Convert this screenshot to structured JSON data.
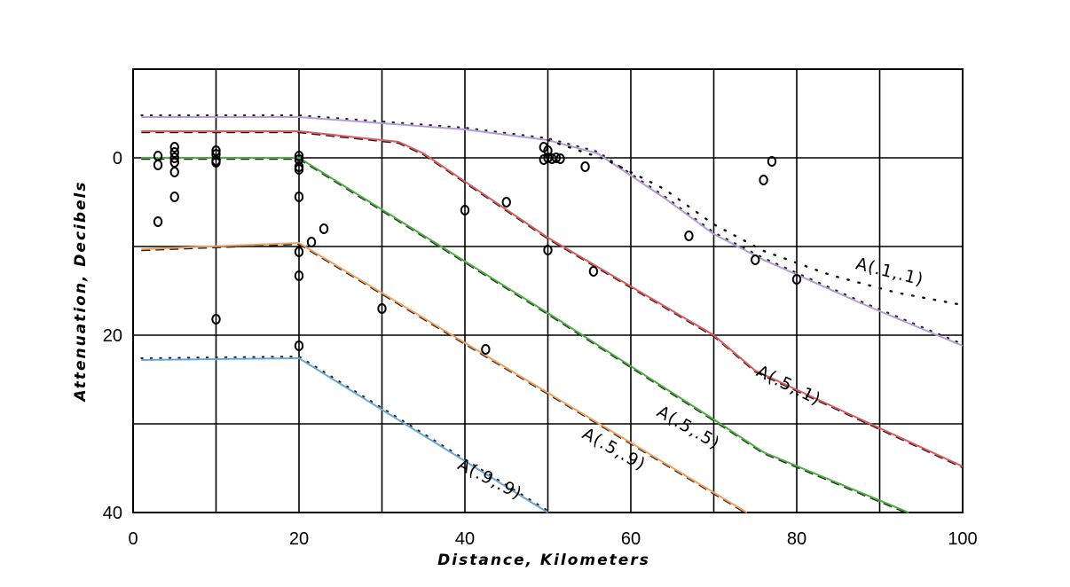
{
  "chart_data": {
    "type": "line",
    "title": "",
    "xlabel": "Distance, Kilometers",
    "ylabel": "Attenuation, Decibels",
    "xlim": [
      0,
      100
    ],
    "ylim": [
      -10,
      40
    ],
    "y_inverted": true,
    "grid": true,
    "x_ticks": [
      {
        "value": 0,
        "label": "0"
      },
      {
        "value": 20,
        "label": "20"
      },
      {
        "value": 40,
        "label": "40"
      },
      {
        "value": 60,
        "label": "60"
      },
      {
        "value": 80,
        "label": "80"
      },
      {
        "value": 100,
        "label": "100"
      }
    ],
    "y_ticks": [
      {
        "value": 0,
        "label": "0"
      },
      {
        "value": 20,
        "label": "20"
      },
      {
        "value": 40,
        "label": "40"
      }
    ],
    "series": [
      {
        "name": "A(.1,.1)",
        "color": "#b79ad9",
        "dotted_ref": true,
        "points": [
          [
            1,
            -4.6
          ],
          [
            20,
            -4.6
          ],
          [
            40,
            -3.2
          ],
          [
            50,
            -2.0
          ],
          [
            56,
            -0.5
          ],
          [
            64,
            4.5
          ],
          [
            70,
            8.6
          ],
          [
            76,
            11.5
          ],
          [
            88,
            16.5
          ],
          [
            100,
            21.2
          ]
        ]
      },
      {
        "name": "A(.5,.1)",
        "color": "#e05a5a",
        "dotted_ref": false,
        "points": [
          [
            1,
            -3.0
          ],
          [
            20,
            -3.0
          ],
          [
            32,
            -1.8
          ],
          [
            35,
            -0.5
          ],
          [
            50,
            9.0
          ],
          [
            70,
            20.0
          ],
          [
            75,
            24.0
          ],
          [
            100,
            34.8
          ]
        ]
      },
      {
        "name": "A(.5,.5)",
        "color": "#4caf3f",
        "dotted_ref": false,
        "points": [
          [
            1,
            0
          ],
          [
            20,
            0
          ],
          [
            50,
            17.5
          ],
          [
            70,
            29.5
          ],
          [
            76,
            33.2
          ],
          [
            93.5,
            40
          ]
        ]
      },
      {
        "name": "A(.5,.9)",
        "color": "#f5a05a",
        "dotted_ref": false,
        "points": [
          [
            1,
            10.3
          ],
          [
            20,
            9.6
          ],
          [
            50,
            26.5
          ],
          [
            74,
            40
          ]
        ]
      },
      {
        "name": "A(.9,.9)",
        "color": "#6aa6d8",
        "dotted_ref": true,
        "points": [
          [
            1,
            22.8
          ],
          [
            20,
            22.6
          ],
          [
            50,
            40
          ]
        ]
      }
    ],
    "observations": [
      [
        3,
        -0.2
      ],
      [
        3,
        0.8
      ],
      [
        3,
        7.2
      ],
      [
        5,
        -1.2
      ],
      [
        5,
        -0.6
      ],
      [
        5,
        0
      ],
      [
        5,
        0.5
      ],
      [
        5,
        1.6
      ],
      [
        5,
        4.4
      ],
      [
        10,
        -0.8
      ],
      [
        10,
        -0.4
      ],
      [
        10,
        0.3
      ],
      [
        10,
        0.5
      ],
      [
        10,
        18.2
      ],
      [
        20,
        -0.2
      ],
      [
        20,
        0.2
      ],
      [
        20,
        1.0
      ],
      [
        20,
        1.3
      ],
      [
        20,
        4.4
      ],
      [
        20,
        10.6
      ],
      [
        20,
        13.3
      ],
      [
        20,
        21.2
      ],
      [
        21.5,
        9.5
      ],
      [
        23,
        8.0
      ],
      [
        30,
        17.0
      ],
      [
        40,
        5.9
      ],
      [
        42.5,
        21.6
      ],
      [
        45,
        5.0
      ],
      [
        49.5,
        -1.2
      ],
      [
        49.5,
        0.2
      ],
      [
        50,
        0
      ],
      [
        50,
        -0.8
      ],
      [
        50,
        10.4
      ],
      [
        50.5,
        0.1
      ],
      [
        51,
        0
      ],
      [
        51.5,
        0.1
      ],
      [
        54.5,
        1.0
      ],
      [
        55.5,
        12.8
      ],
      [
        67,
        8.8
      ],
      [
        75,
        11.5
      ],
      [
        76,
        2.5
      ],
      [
        77,
        0.4
      ],
      [
        80,
        13.7
      ]
    ],
    "observation_marker": "o"
  }
}
